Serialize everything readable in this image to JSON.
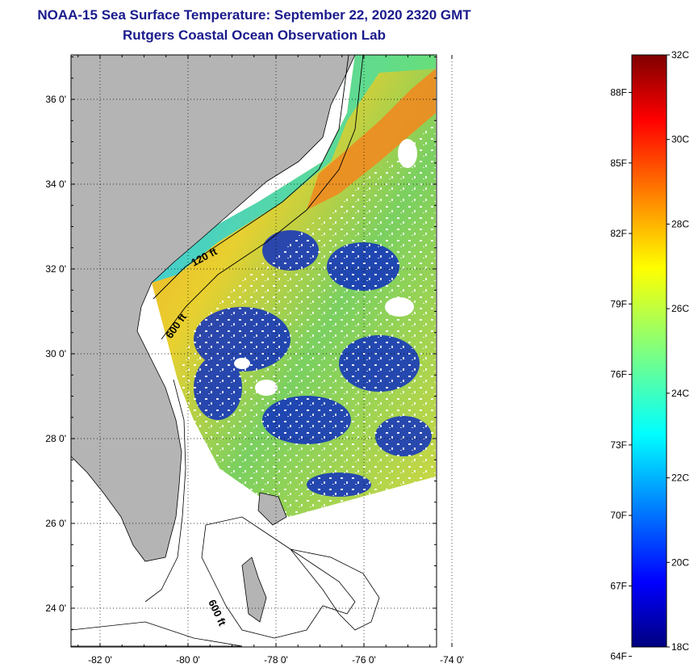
{
  "header": {
    "title": "NOAA-15 Sea Surface Temperature:  September 22, 2020 2320 GMT",
    "subtitle": "Rutgers Coastal Ocean Observation Lab"
  },
  "map": {
    "lat_labels": [
      {
        "value": 36,
        "label": "36 0'"
      },
      {
        "value": 34,
        "label": "34 0'"
      },
      {
        "value": 32,
        "label": "32 0'"
      },
      {
        "value": 30,
        "label": "30 0'"
      },
      {
        "value": 28,
        "label": "28 0'"
      },
      {
        "value": 26,
        "label": "26 0'"
      },
      {
        "value": 24,
        "label": "24 0'"
      }
    ],
    "lon_labels": [
      {
        "value": -82,
        "label": "-82 0'"
      },
      {
        "value": -80,
        "label": "-80 0'"
      },
      {
        "value": -78,
        "label": "-78 0'"
      },
      {
        "value": -76,
        "label": "-76 0'"
      },
      {
        "value": -74,
        "label": "-74 0'"
      }
    ],
    "contour_labels": [
      "120 ft",
      "600 ft",
      "600 ft"
    ],
    "colors": {
      "land": "#b4b4b4",
      "cloud": "#ffffff",
      "ocean_warm": "#f5a020",
      "ocean_mid": "#7ad060",
      "ocean_cool": "#1030c0"
    }
  },
  "colorbar": {
    "fahrenheit_labels": [
      "88F",
      "85F",
      "82F",
      "79F",
      "76F",
      "73F",
      "70F",
      "67F",
      "64F"
    ],
    "celsius_labels": [
      "32C",
      "30C",
      "28C",
      "26C",
      "24C",
      "22C",
      "20C",
      "18C"
    ],
    "min_c": 18,
    "max_c": 32,
    "colormap": "jet"
  }
}
